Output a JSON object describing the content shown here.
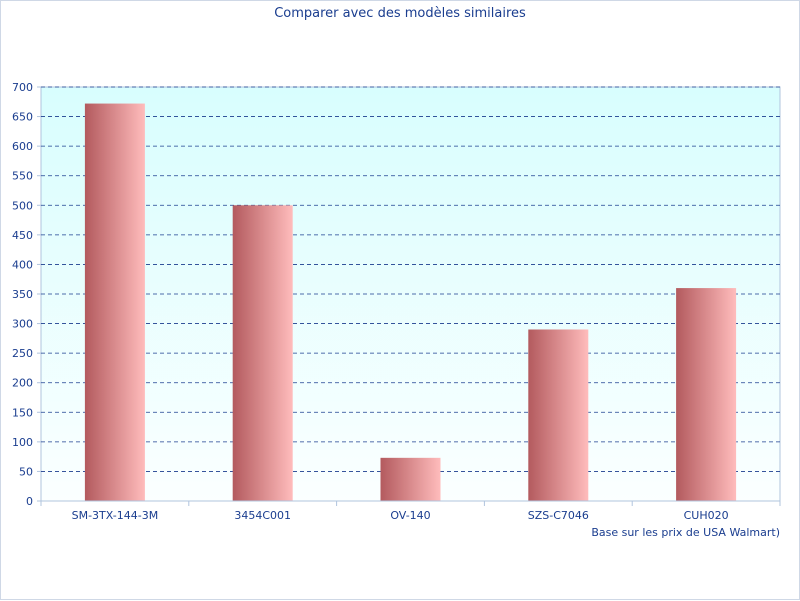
{
  "chart_data": {
    "type": "bar",
    "title": "Comparer avec des modèles similaires",
    "categories": [
      "SM-3TX-144-3M",
      "3454C001",
      "OV-140",
      "SZS-C7046",
      "CUH020"
    ],
    "values": [
      672,
      500,
      73,
      290,
      360
    ],
    "xlabel": "",
    "ylabel": "",
    "ylim": [
      0,
      700
    ],
    "yticks": [
      0,
      50,
      100,
      150,
      200,
      250,
      300,
      350,
      400,
      450,
      500,
      550,
      600,
      650,
      700
    ],
    "grid": true,
    "note": "Base sur les prix de USA Walmart)"
  },
  "colors": {
    "bar_dark": "#b35a5e",
    "bar_light": "#ffbcbc",
    "plot_top": "#d8fefe",
    "plot_bottom": "#fbffff",
    "grid": "#1a3d8f",
    "text": "#1a3d8f",
    "axis": "#b0c4de"
  }
}
